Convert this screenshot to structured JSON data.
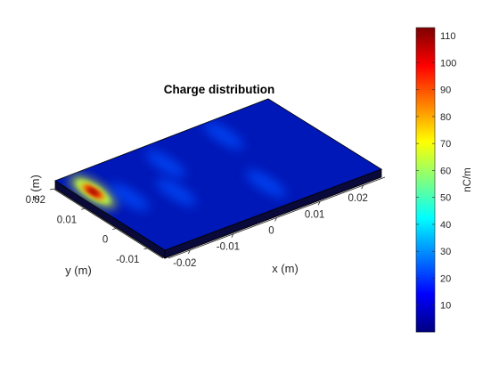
{
  "chart_data": {
    "type": "heatmap",
    "title": "Charge distribution",
    "xlabel": "x (m)",
    "ylabel": "y (m)",
    "zlabel": "z (m)",
    "x_ticks": [
      "-0.02",
      "-0.01",
      "0",
      "0.01",
      "0.02"
    ],
    "y_ticks": [
      "-0.01",
      "0",
      "0.01",
      "0.02"
    ],
    "xlim": [
      -0.025,
      0.025
    ],
    "ylim": [
      -0.015,
      0.02
    ],
    "colorbar": {
      "label": "nC/m",
      "ticks": [
        "10",
        "20",
        "30",
        "40",
        "50",
        "60",
        "70",
        "80",
        "90",
        "100",
        "110"
      ],
      "limits": [
        0,
        113
      ],
      "colormap": "jet"
    },
    "grid": false,
    "hotspots": [
      {
        "x": -0.022,
        "y": 0.012,
        "value": 112
      },
      {
        "x": -0.018,
        "y": 0.006,
        "value": 35
      },
      {
        "x": -0.01,
        "y": 0.002,
        "value": 18
      },
      {
        "x": -0.005,
        "y": 0.012,
        "value": 14
      },
      {
        "x": 0.01,
        "y": 0.014,
        "value": 10
      },
      {
        "x": 0.005,
        "y": -0.006,
        "value": 7
      }
    ]
  }
}
